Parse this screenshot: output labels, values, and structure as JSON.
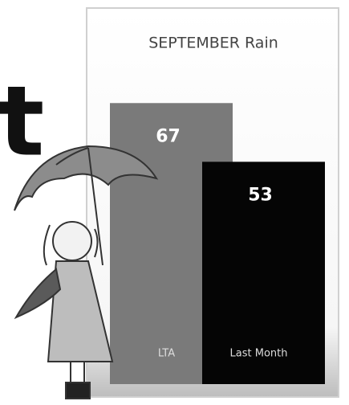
{
  "fragment_text": "t",
  "chart_data": {
    "type": "bar",
    "title": "SEPTEMBER Rain",
    "categories": [
      "LTA",
      "Last Month"
    ],
    "values": [
      67,
      53
    ],
    "colors": [
      "#7a7a7a",
      "#050505"
    ]
  }
}
